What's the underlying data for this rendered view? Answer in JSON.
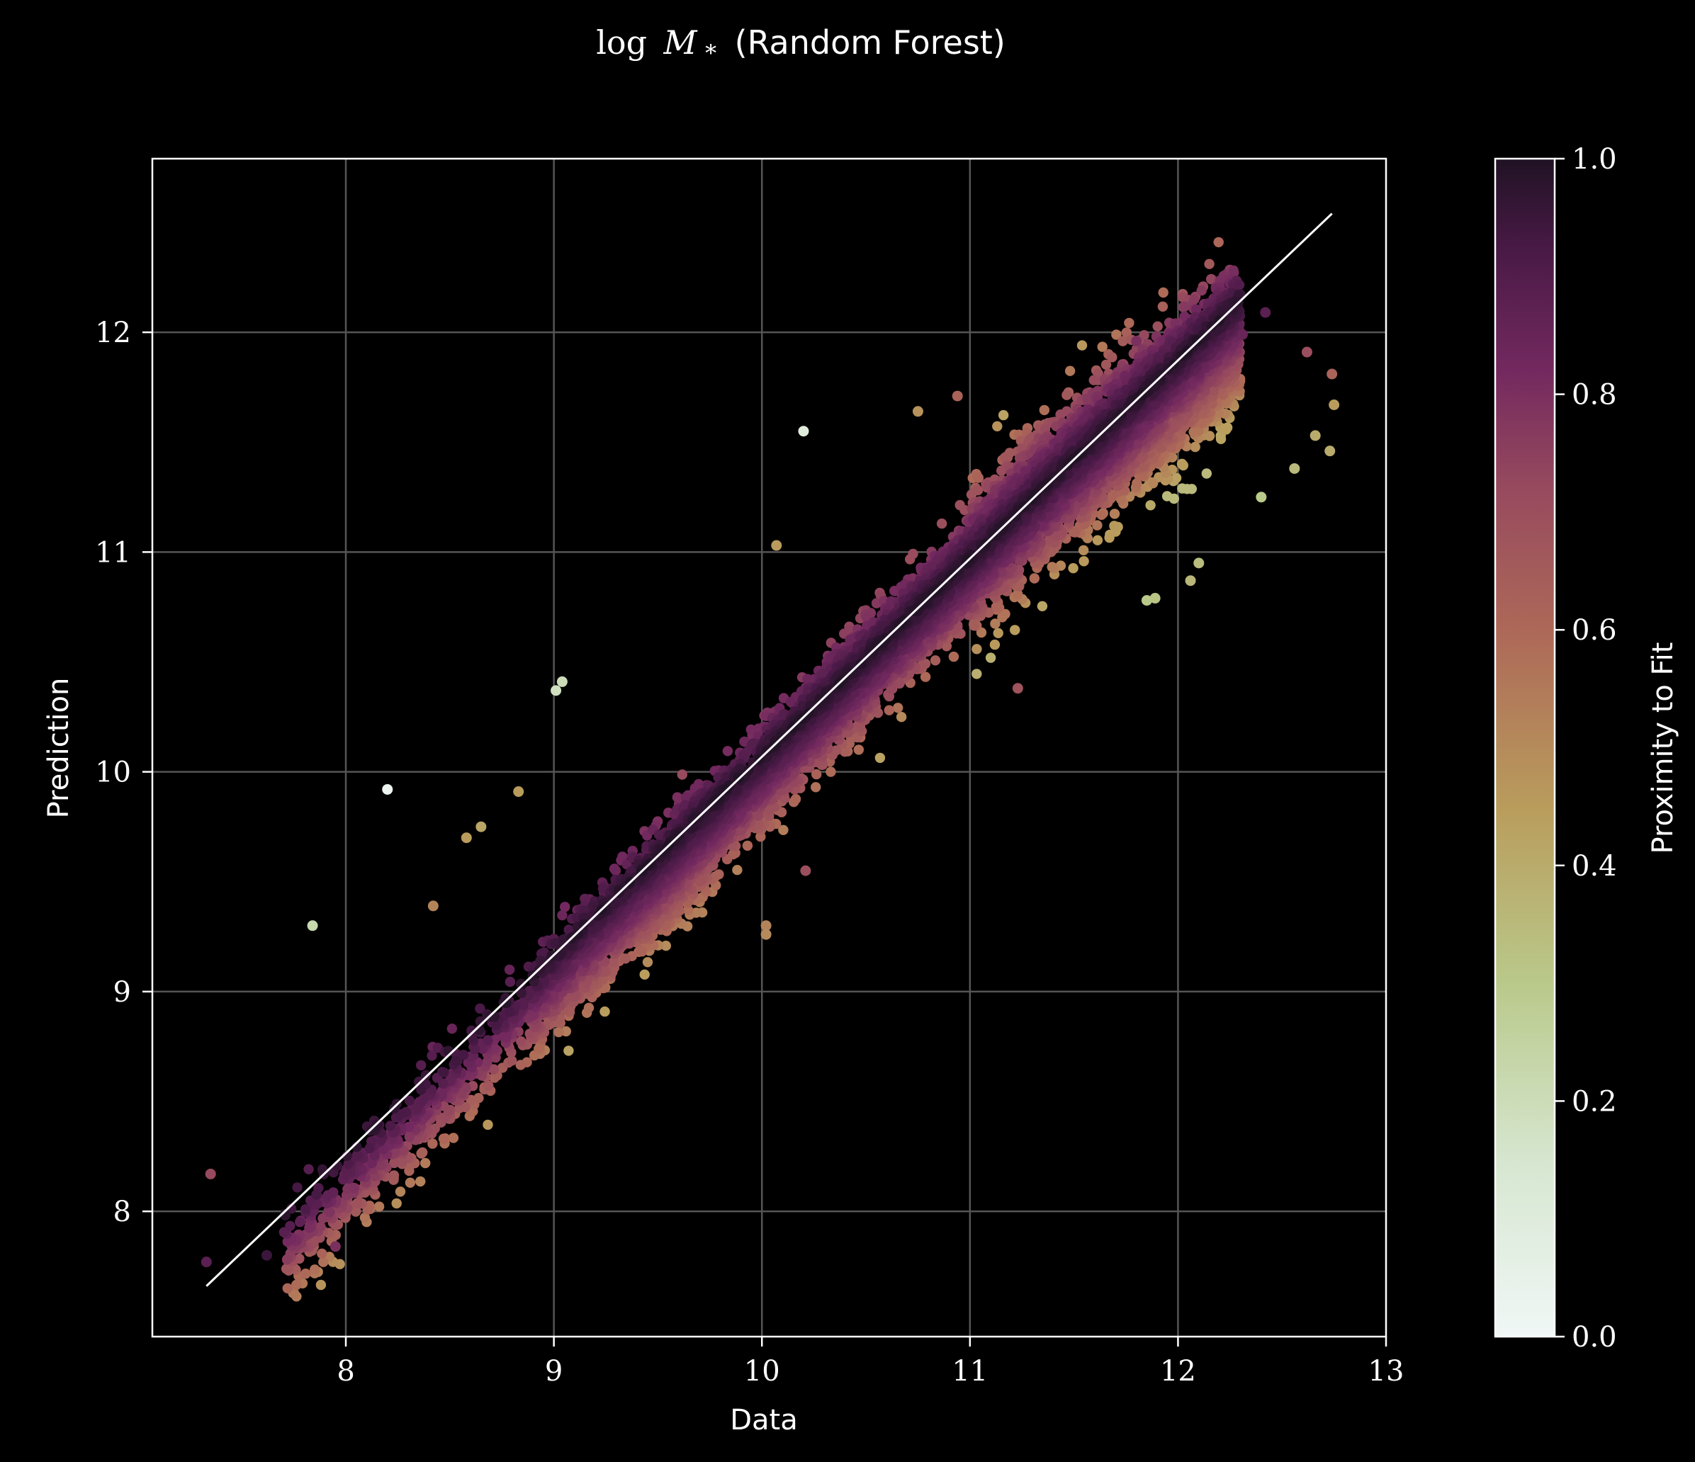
{
  "chart_data": {
    "type": "scatter",
    "title": {
      "math_base": "log",
      "math_symbol": "M",
      "math_subscript": "*",
      "text": "(Random Forest)"
    },
    "xlabel": "Data",
    "ylabel": "Prediction",
    "xlim": [
      7.07,
      13.0
    ],
    "ylim": [
      7.43,
      12.79
    ],
    "xticks": [
      "8",
      "9",
      "10",
      "11",
      "12",
      "13"
    ],
    "yticks": [
      "8",
      "9",
      "10",
      "11",
      "12"
    ],
    "grid": true,
    "background": "#000000",
    "reference_line": {
      "x": [
        7.33,
        12.74
      ],
      "y": [
        7.66,
        12.54
      ],
      "color": "#ffffff"
    },
    "colorbar": {
      "label": "Proximity to Fit",
      "range": [
        0.0,
        1.0
      ],
      "ticks": [
        "0.0",
        "0.2",
        "0.4",
        "0.6",
        "0.8",
        "1.0"
      ],
      "colormap": "pink-purple (0 = near white, 1 = dark purple)"
    },
    "outliers": [
      {
        "x": 7.35,
        "y": 8.17,
        "c": 0.72
      },
      {
        "x": 7.33,
        "y": 7.77,
        "c": 0.88
      },
      {
        "x": 7.62,
        "y": 7.8,
        "c": 0.95
      },
      {
        "x": 7.84,
        "y": 9.3,
        "c": 0.22
      },
      {
        "x": 7.95,
        "y": 7.84,
        "c": 0.8
      },
      {
        "x": 8.2,
        "y": 9.92,
        "c": 0.03
      },
      {
        "x": 8.42,
        "y": 9.39,
        "c": 0.52
      },
      {
        "x": 8.58,
        "y": 9.7,
        "c": 0.45
      },
      {
        "x": 8.65,
        "y": 9.75,
        "c": 0.42
      },
      {
        "x": 8.83,
        "y": 9.91,
        "c": 0.45
      },
      {
        "x": 9.01,
        "y": 10.37,
        "c": 0.18
      },
      {
        "x": 9.04,
        "y": 10.41,
        "c": 0.2
      },
      {
        "x": 10.02,
        "y": 9.3,
        "c": 0.52
      },
      {
        "x": 10.02,
        "y": 9.26,
        "c": 0.5
      },
      {
        "x": 10.07,
        "y": 11.03,
        "c": 0.45
      },
      {
        "x": 10.2,
        "y": 11.55,
        "c": 0.1
      },
      {
        "x": 10.21,
        "y": 9.55,
        "c": 0.7
      },
      {
        "x": 10.75,
        "y": 11.64,
        "c": 0.48
      },
      {
        "x": 10.94,
        "y": 11.71,
        "c": 0.62
      },
      {
        "x": 11.23,
        "y": 10.38,
        "c": 0.68
      },
      {
        "x": 11.8,
        "y": 11.96,
        "c": 0.8
      },
      {
        "x": 11.85,
        "y": 10.78,
        "c": 0.3
      },
      {
        "x": 11.89,
        "y": 10.79,
        "c": 0.32
      },
      {
        "x": 12.06,
        "y": 10.87,
        "c": 0.36
      },
      {
        "x": 12.1,
        "y": 10.95,
        "c": 0.34
      },
      {
        "x": 12.31,
        "y": 11.99,
        "c": 0.85
      },
      {
        "x": 12.42,
        "y": 12.09,
        "c": 0.88
      },
      {
        "x": 12.4,
        "y": 11.25,
        "c": 0.3
      },
      {
        "x": 12.56,
        "y": 11.38,
        "c": 0.35
      },
      {
        "x": 12.62,
        "y": 11.91,
        "c": 0.7
      },
      {
        "x": 12.66,
        "y": 11.53,
        "c": 0.4
      },
      {
        "x": 12.74,
        "y": 11.81,
        "c": 0.62
      },
      {
        "x": 12.73,
        "y": 11.46,
        "c": 0.4
      },
      {
        "x": 12.75,
        "y": 11.67,
        "c": 0.45
      }
    ]
  }
}
